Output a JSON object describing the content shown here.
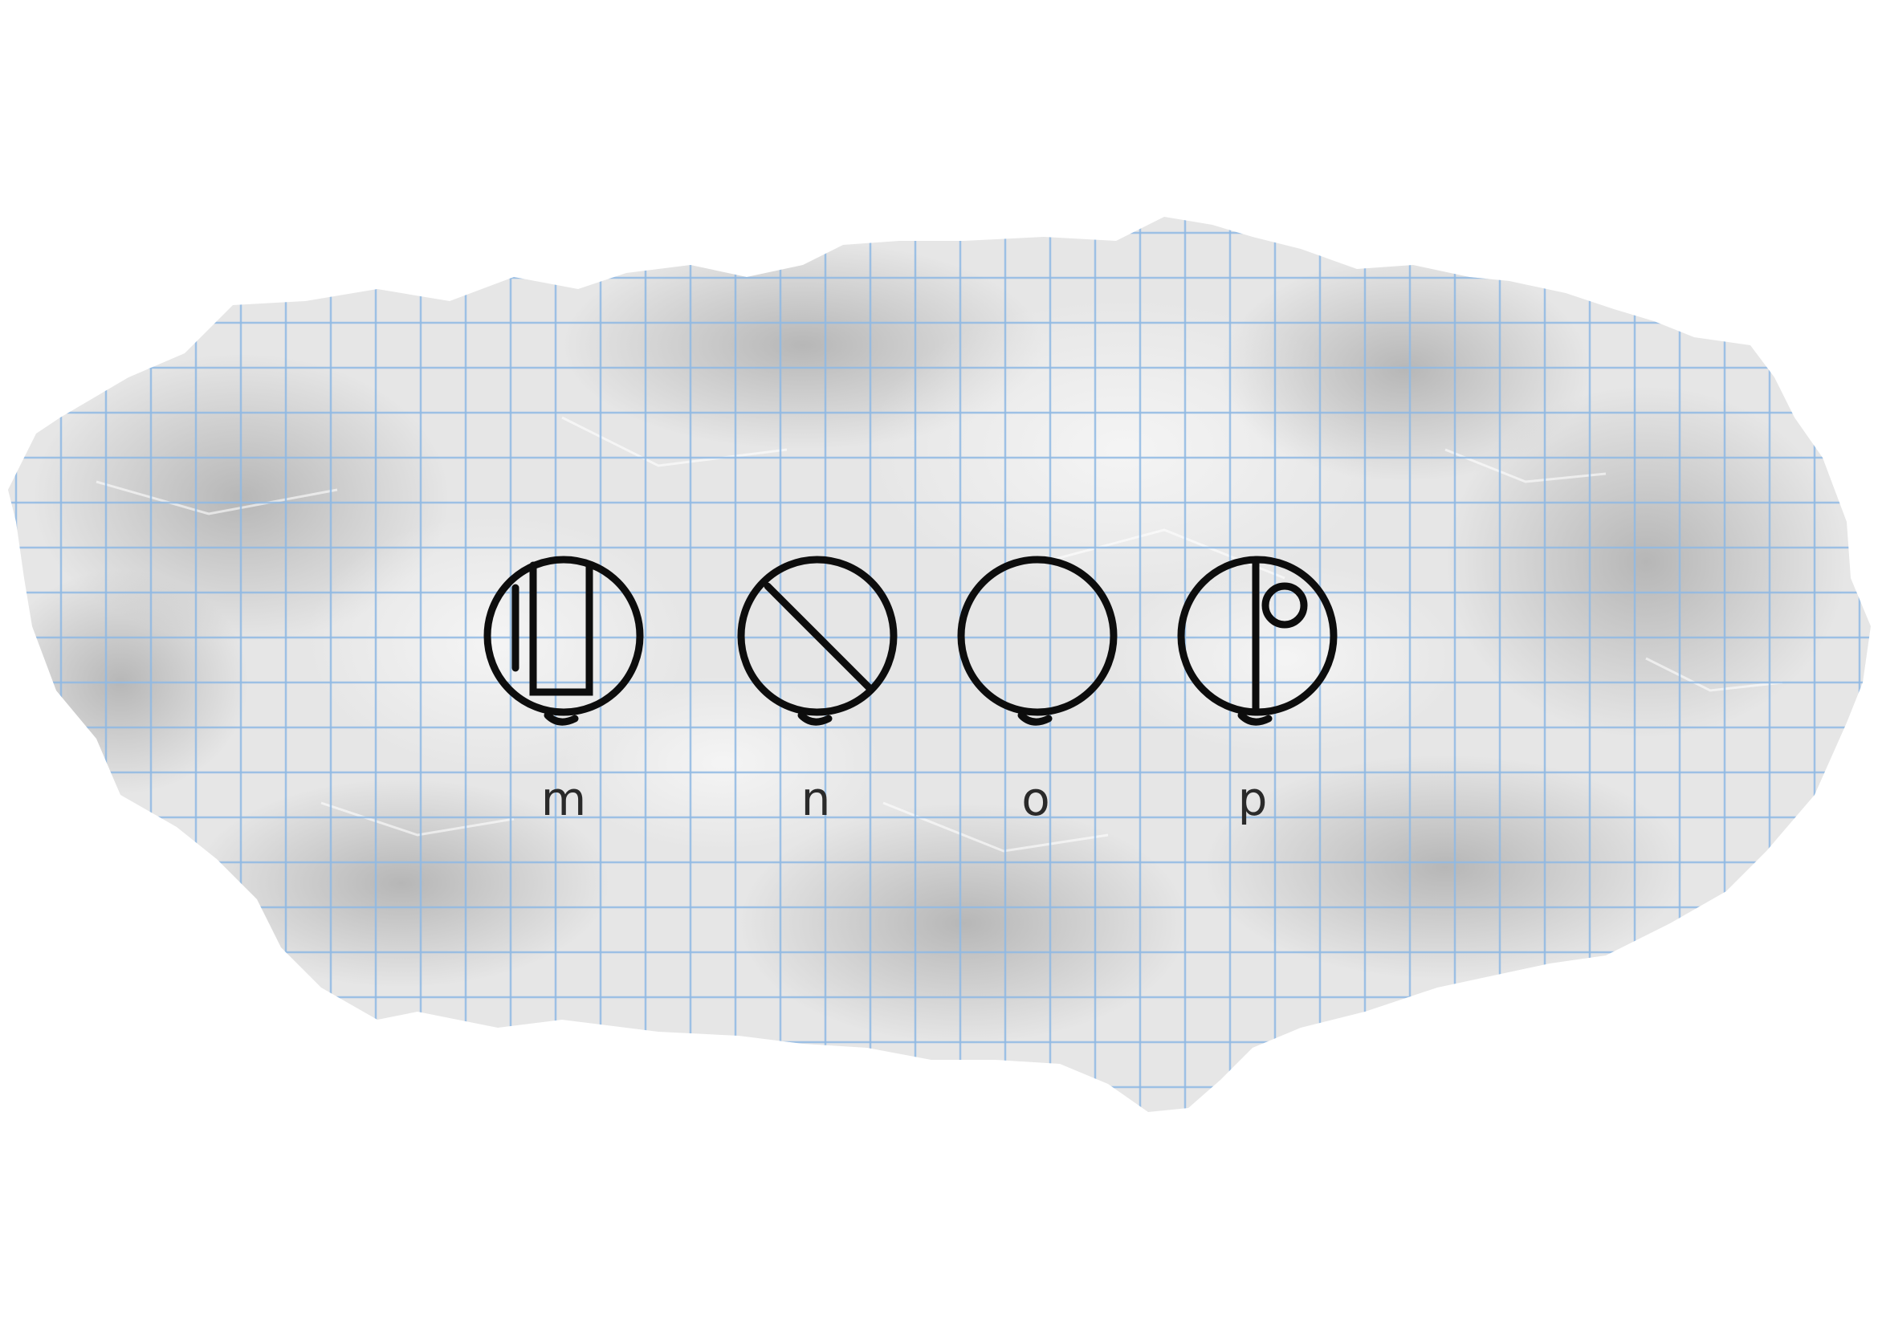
{
  "colors": {
    "paper": "#e6e6e6",
    "grid": "#8fb8e3",
    "ink": "#0d0d0d",
    "label": "#2a2a2a"
  },
  "glyphs": [
    {
      "icon": "circle-with-open-rectangle-icon",
      "label": "m"
    },
    {
      "icon": "circle-with-diagonal-slash-icon",
      "label": "n"
    },
    {
      "icon": "empty-circle-icon",
      "label": "o"
    },
    {
      "icon": "circle-with-half-line-and-small-circle-icon",
      "label": "p"
    }
  ]
}
